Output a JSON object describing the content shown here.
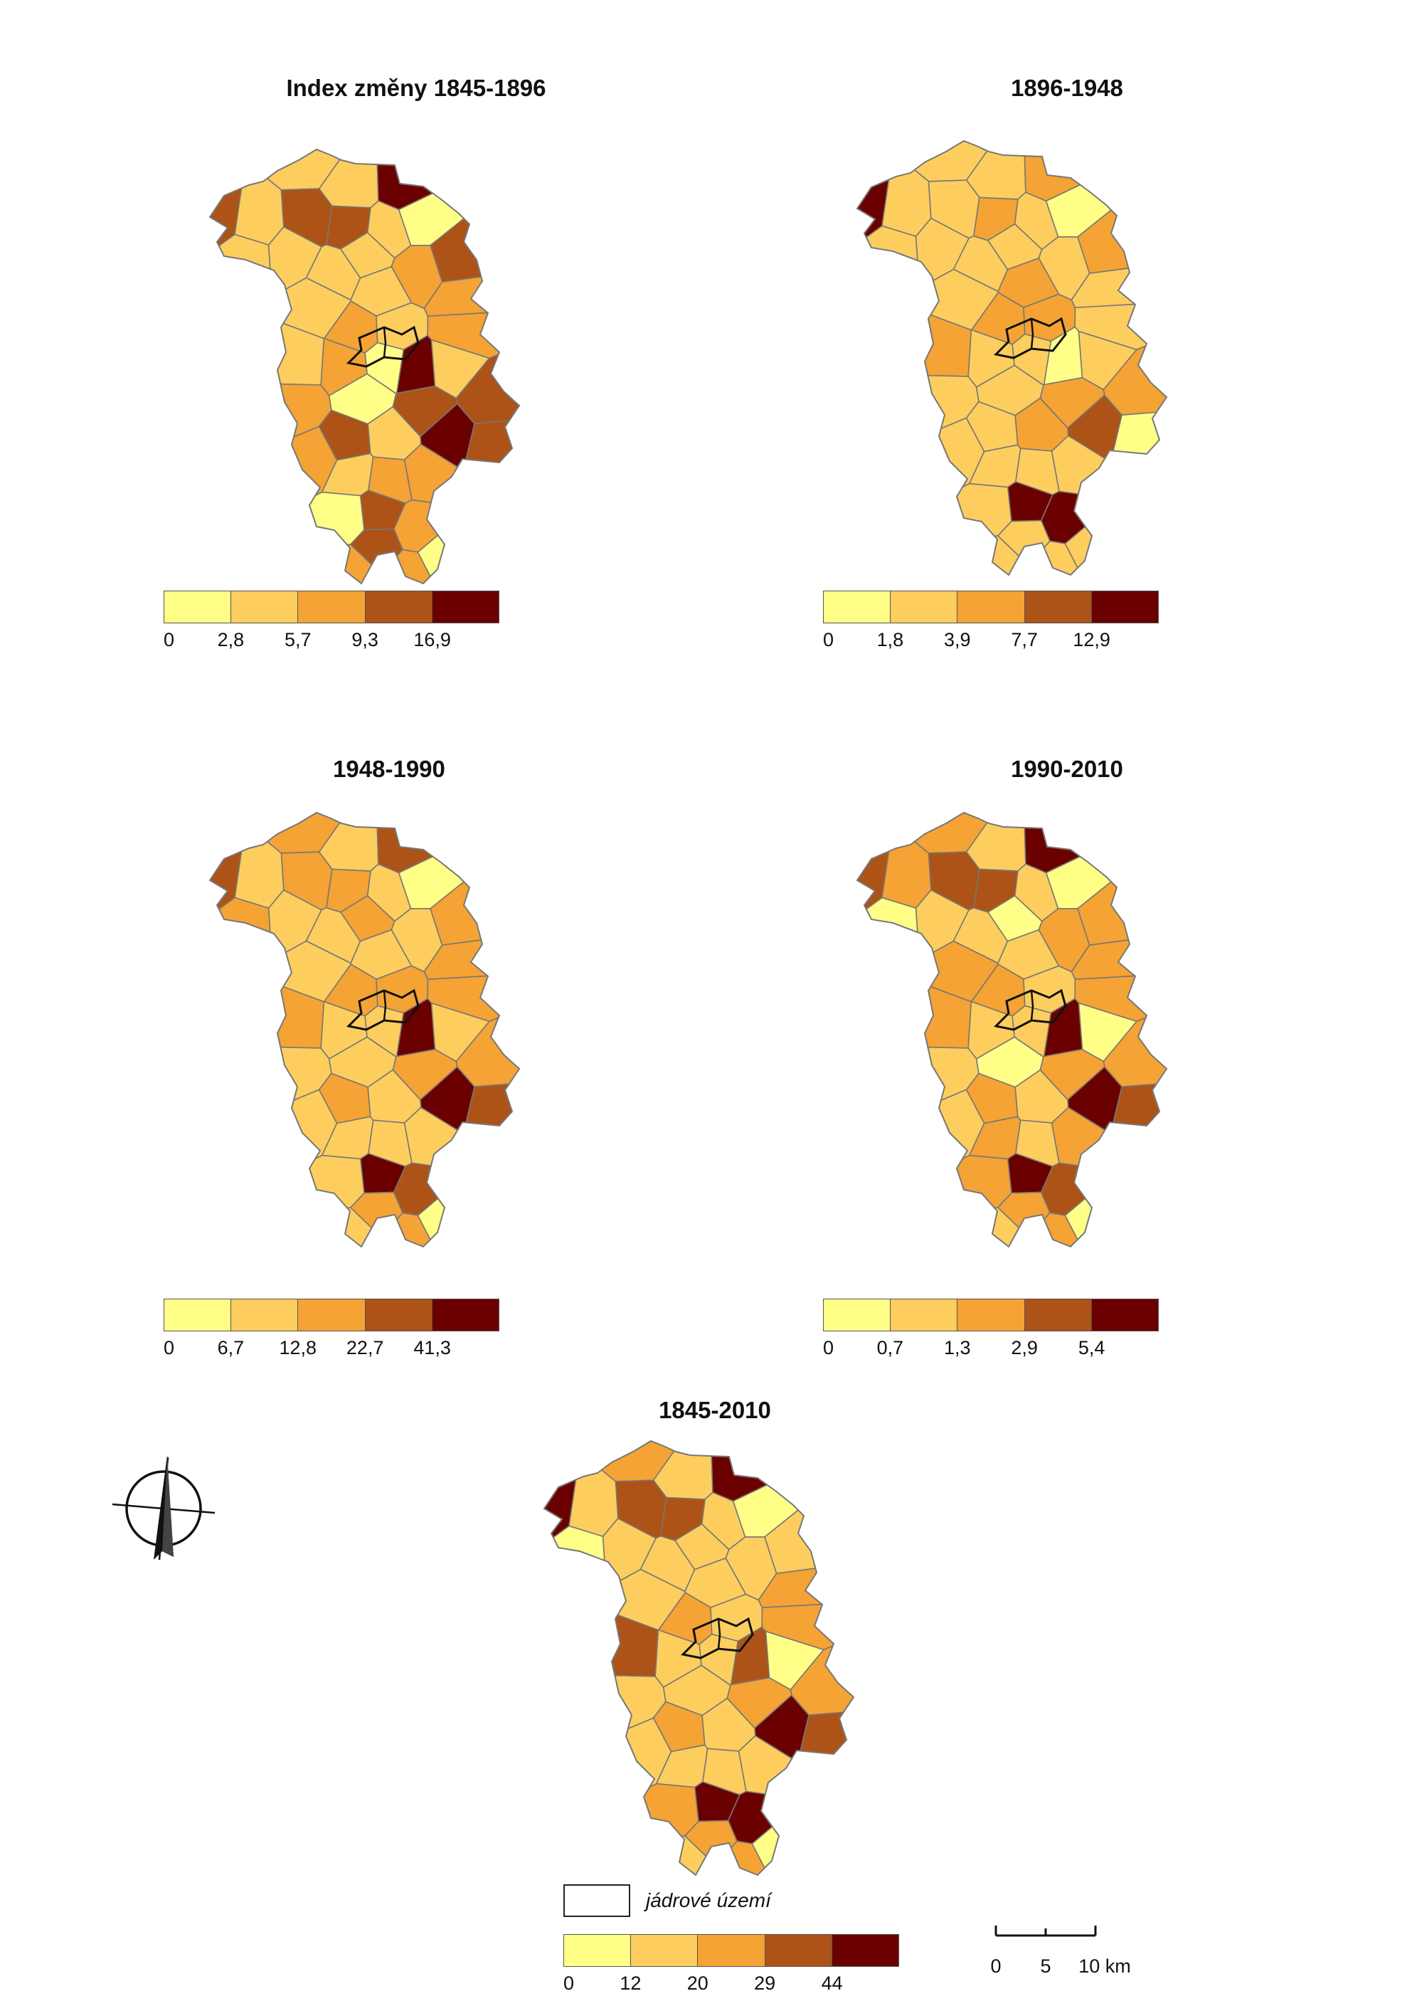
{
  "palette": [
    "#ffff88",
    "#fdce5e",
    "#f4a334",
    "#ad5317",
    "#6b0000"
  ],
  "border_color": "#777777",
  "core_border_color": "#111111",
  "maps": [
    {
      "id": "1845-1896",
      "title": "Index změny 1845-1896",
      "legend_ticks": [
        "0",
        "2,8",
        "5,7",
        "9,3",
        "16,9"
      ],
      "region_classes": [
        0,
        1,
        1,
        1,
        0,
        0,
        2,
        1,
        1,
        4,
        1,
        2,
        0,
        1,
        2,
        3,
        2,
        3,
        1,
        4,
        2,
        1,
        3,
        4,
        3,
        2,
        1,
        3,
        2,
        3,
        2,
        1,
        3,
        3,
        1,
        2,
        2,
        3,
        1,
        2,
        2,
        1,
        3,
        0,
        1
      ]
    },
    {
      "id": "1896-1948",
      "title": "1896-1948",
      "legend_ticks": [
        "0",
        "1,8",
        "3,9",
        "7,7",
        "12,9"
      ],
      "region_classes": [
        1,
        1,
        2,
        1,
        0,
        1,
        1,
        2,
        1,
        3,
        1,
        1,
        1,
        1,
        1,
        4,
        4,
        4,
        2,
        2,
        2,
        1,
        1,
        0,
        0,
        1,
        1,
        2,
        1,
        1,
        1,
        2,
        1,
        2,
        1,
        1,
        1,
        2,
        1,
        1,
        1,
        1,
        2,
        1,
        1
      ]
    },
    {
      "id": "1948-1990",
      "title": "1948-1990",
      "legend_ticks": [
        "0",
        "6,7",
        "12,8",
        "22,7",
        "41,3"
      ],
      "region_classes": [
        1,
        2,
        2,
        2,
        0,
        1,
        1,
        1,
        1,
        4,
        1,
        1,
        1,
        1,
        1,
        3,
        3,
        4,
        2,
        3,
        2,
        1,
        2,
        4,
        3,
        1,
        2,
        2,
        2,
        2,
        1,
        1,
        2,
        2,
        1,
        2,
        1,
        2,
        1,
        1,
        2,
        1,
        2,
        0,
        1
      ]
    },
    {
      "id": "1990-2010",
      "title": "1990-2010",
      "legend_ticks": [
        "0",
        "0,7",
        "1,3",
        "2,9",
        "5,4"
      ],
      "region_classes": [
        0,
        0,
        1,
        0,
        0,
        1,
        2,
        1,
        2,
        4,
        1,
        1,
        2,
        1,
        2,
        3,
        3,
        4,
        2,
        4,
        2,
        2,
        2,
        4,
        3,
        1,
        2,
        2,
        2,
        3,
        1,
        1,
        2,
        2,
        1,
        2,
        1,
        2,
        2,
        1,
        2,
        1,
        3,
        0,
        0
      ]
    },
    {
      "id": "1845-2010",
      "title": "1845-2010",
      "legend_ticks": [
        "0",
        "12",
        "20",
        "29",
        "44"
      ],
      "region_classes": [
        1,
        0,
        1,
        1,
        0,
        1,
        1,
        1,
        1,
        4,
        1,
        1,
        2,
        1,
        1,
        4,
        4,
        4,
        3,
        4,
        2,
        1,
        2,
        3,
        3,
        1,
        2,
        2,
        2,
        3,
        1,
        1,
        2,
        1,
        1,
        2,
        1,
        2,
        1,
        1,
        2,
        1,
        3,
        0,
        0
      ]
    }
  ],
  "core_legend_label": "jádrové území",
  "scale": {
    "ticks": [
      "0",
      "5",
      "10 km"
    ]
  }
}
